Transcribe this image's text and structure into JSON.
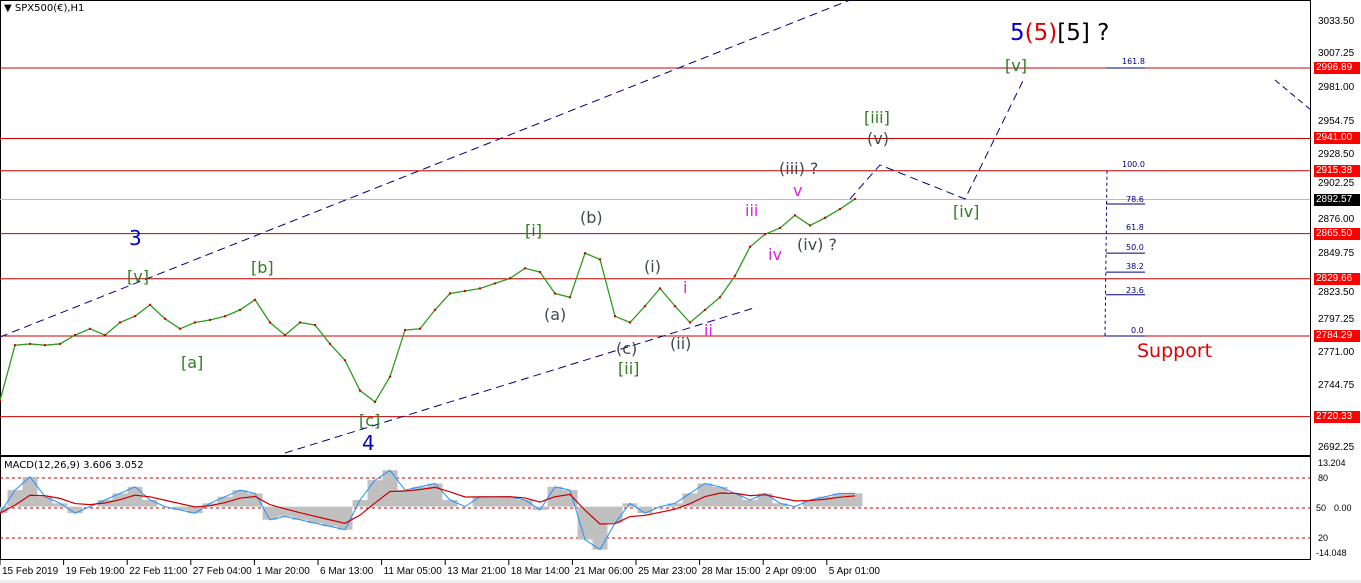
{
  "header": {
    "symbol_title": "SPX500(€),H1",
    "collapse_icon": "triangle-down-icon"
  },
  "colors": {
    "price_line": "#2e9d1e",
    "level": "#cc0000",
    "channel": "#00007a",
    "macd_line": "#1e90ff",
    "signal_line": "#cc0000",
    "histogram": "#c0c0c0"
  },
  "price_axis": {
    "ticks": [
      "3033.50",
      "3007.25",
      "2981.00",
      "2954.75",
      "2928.50",
      "2902.25",
      "2876.00",
      "2849.75",
      "2823.50",
      "2797.25",
      "2771.00",
      "2744.75",
      "2692.25"
    ],
    "levels": [
      "2996.89",
      "2941.00",
      "2915.38",
      "2865.50",
      "2829.66",
      "2784.29",
      "2720.33"
    ],
    "current": "2892.57"
  },
  "time_axis": [
    "15 Feb 2019",
    "19 Feb 19:00",
    "22 Feb 11:00",
    "27 Feb 04:00",
    "1 Mar 20:00",
    "6 Mar 13:00",
    "11 Mar 05:00",
    "13 Mar 21:00",
    "18 Mar 14:00",
    "21 Mar 06:00",
    "25 Mar 23:00",
    "28 Mar 15:00",
    "2 Apr 09:00",
    "5 Apr 01:00"
  ],
  "fib_levels": [
    "161.8",
    "100.0",
    "78.6",
    "61.8",
    "50.0",
    "38.2",
    "23.6",
    "0.0"
  ],
  "waves": {
    "w3": "3",
    "w4": "4",
    "v_top": "[v]",
    "b": "[b]",
    "a": "[a]",
    "c": "[c]",
    "i": "[i]",
    "ii": "[ii]",
    "iii": "[iii]",
    "iv": "[iv]",
    "v": "[v]",
    "pa": "(a)",
    "pb": "(b)",
    "pc": "(c)",
    "pi": "(i)",
    "pii": "(ii)",
    "piii": "(iii) ?",
    "piv": "(iv) ?",
    "pv": "(v)",
    "mi": "i",
    "mii": "ii",
    "miii": "iii",
    "miv": "iv",
    "mv": "v",
    "top_5": "5",
    "top_5p": "(5)",
    "top_5b": "[5]",
    "top_q": "?"
  },
  "support_label": "Support",
  "macd": {
    "title": "MACD(12,26,9) 3.606 3.052",
    "axis": [
      "13.204",
      "80",
      "0.00",
      "50",
      "20",
      "-14.048"
    ]
  },
  "chart_data": {
    "type": "line",
    "title": "SPX500(€),H1",
    "ylim": [
      2685,
      3045
    ],
    "x_tick_labels": [
      "15 Feb 2019",
      "19 Feb 19:00",
      "22 Feb 11:00",
      "27 Feb 04:00",
      "1 Mar 20:00",
      "6 Mar 13:00",
      "11 Mar 05:00",
      "13 Mar 21:00",
      "18 Mar 14:00",
      "21 Mar 06:00",
      "25 Mar 23:00",
      "28 Mar 15:00",
      "2 Apr 09:00",
      "5 Apr 01:00"
    ],
    "price": [
      2733,
      2777,
      2778,
      2777,
      2778,
      2785,
      2790,
      2785,
      2795,
      2800,
      2809,
      2798,
      2790,
      2795,
      2797,
      2800,
      2805,
      2813,
      2795,
      2785,
      2795,
      2793,
      2778,
      2765,
      2741,
      2732,
      2752,
      2789,
      2790,
      2805,
      2818,
      2820,
      2822,
      2826,
      2830,
      2838,
      2835,
      2818,
      2815,
      2850,
      2845,
      2800,
      2795,
      2808,
      2822,
      2808,
      2795,
      2805,
      2815,
      2832,
      2855,
      2865,
      2870,
      2880,
      2872,
      2878,
      2885,
      2893
    ],
    "horizontal_levels": [
      2996.89,
      2941.0,
      2915.38,
      2865.5,
      2829.66,
      2784.29,
      2720.33
    ],
    "projection": [
      [
        2893,
        2920,
        2893,
        2990
      ]
    ],
    "macd": {
      "ylim": [
        -14.048,
        13.204
      ],
      "values": [
        -2,
        5,
        9,
        3,
        1,
        -2,
        0,
        2,
        4,
        6,
        2,
        0,
        -1,
        -2,
        1,
        3,
        5,
        4,
        -4,
        -3,
        -4,
        -5,
        -6,
        -7,
        2,
        8,
        11,
        5,
        6,
        7,
        2,
        0,
        3,
        3,
        3,
        2,
        -1,
        6,
        5,
        -10,
        -13,
        -5,
        1,
        -2,
        0,
        1,
        4,
        7,
        6,
        4,
        2,
        4,
        1,
        0,
        2,
        3,
        4,
        4
      ]
    }
  }
}
